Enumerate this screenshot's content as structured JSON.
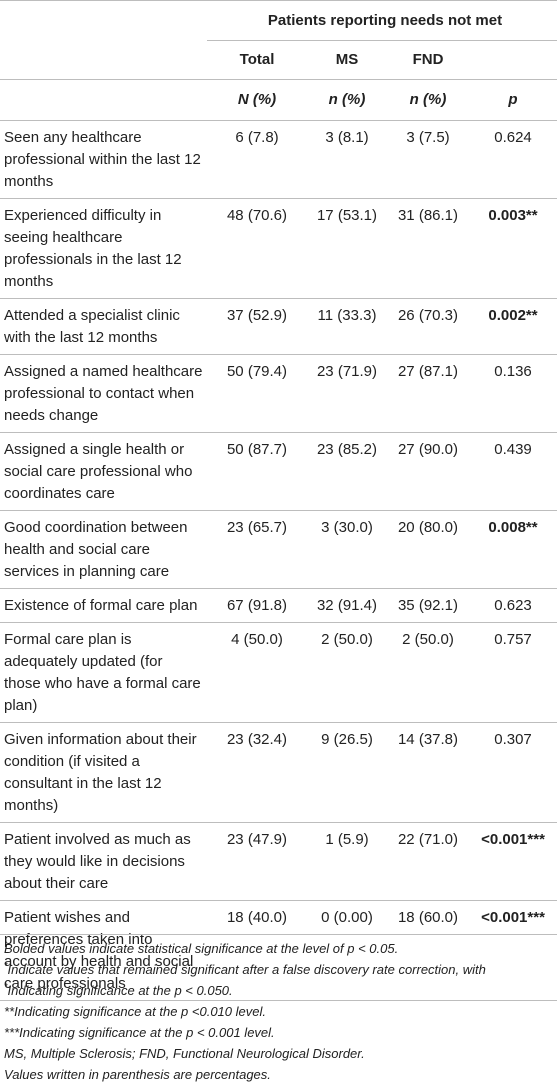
{
  "table": {
    "group_header": "Patients reporting needs not met",
    "columns": [
      "Total",
      "MS",
      "FND",
      ""
    ],
    "subheaders": [
      "N (%)",
      "n (%)",
      "n (%)",
      "p"
    ],
    "rows": [
      {
        "item": "Seen any healthcare professional within the last 12 months",
        "total": "6 (7.8)",
        "ms": "3 (8.1)",
        "fnd": "3 (7.5)",
        "p": "0.624",
        "p_bold": false
      },
      {
        "item": "Experienced difficulty in seeing healthcare professionals in the last 12 months",
        "total": "48 (70.6)",
        "ms": "17 (53.1)",
        "fnd": "31 (86.1)",
        "p": "0.003**",
        "p_bold": true
      },
      {
        "item": "Attended a specialist clinic with the last 12 months",
        "total": "37 (52.9)",
        "ms": "11 (33.3)",
        "fnd": "26 (70.3)",
        "p": "0.002**",
        "p_bold": true
      },
      {
        "item": "Assigned a named healthcare professional to contact when needs change",
        "total": "50 (79.4)",
        "ms": "23 (71.9)",
        "fnd": "27 (87.1)",
        "p": "0.136",
        "p_bold": false
      },
      {
        "item": "Assigned a single health or social care professional who coordinates care",
        "total": "50 (87.7)",
        "ms": "23 (85.2)",
        "fnd": "27 (90.0)",
        "p": "0.439",
        "p_bold": false
      },
      {
        "item": "Good coordination between health and social care services in planning care",
        "total": "23 (65.7)",
        "ms": "3 (30.0)",
        "fnd": "20 (80.0)",
        "p": "0.008**",
        "p_bold": true
      },
      {
        "item": "Existence of formal care plan",
        "total": "67 (91.8)",
        "ms": "32 (91.4)",
        "fnd": "35 (92.1)",
        "p": "0.623",
        "p_bold": false
      },
      {
        "item": "Formal care plan is adequately updated (for those who have a formal care plan)",
        "total": "4 (50.0)",
        "ms": "2 (50.0)",
        "fnd": "2 (50.0)",
        "p": "0.757",
        "p_bold": false
      },
      {
        "item": "Given information about their condition (if visited a consultant in the last 12 months)",
        "total": "23 (32.4)",
        "ms": "9 (26.5)",
        "fnd": "14 (37.8)",
        "p": "0.307",
        "p_bold": false
      },
      {
        "item": "Patient involved as much as they would like in decisions about their care",
        "total": "23 (47.9)",
        "ms": "1 (5.9)",
        "fnd": "22 (71.0)",
        "p": "<0.001***",
        "p_bold": true
      },
      {
        "item": "Patient wishes and preferences taken into account by health and social care professionals",
        "total": "18 (40.0)",
        "ms": "0 (0.00)",
        "fnd": "18 (60.0)",
        "p": "<0.001***",
        "p_bold": true
      }
    ]
  },
  "notes": {
    "line1": "Bolded values indicate statistical significance at the level of p < 0.05.",
    "line2_sup": "*",
    "line2": "Indicate values that remained significant after a false discovery rate correction, with",
    "line3_sup": "*",
    "line3": "Indicating significance at the p < 0.050.",
    "line4": "**Indicating significance at the p <0.010 level.",
    "line5": "***Indicating significance at the p < 0.001 level.",
    "line6": "MS, Multiple Sclerosis; FND, Functional Neurological Disorder.",
    "line7": "Values written in parenthesis are percentages."
  }
}
